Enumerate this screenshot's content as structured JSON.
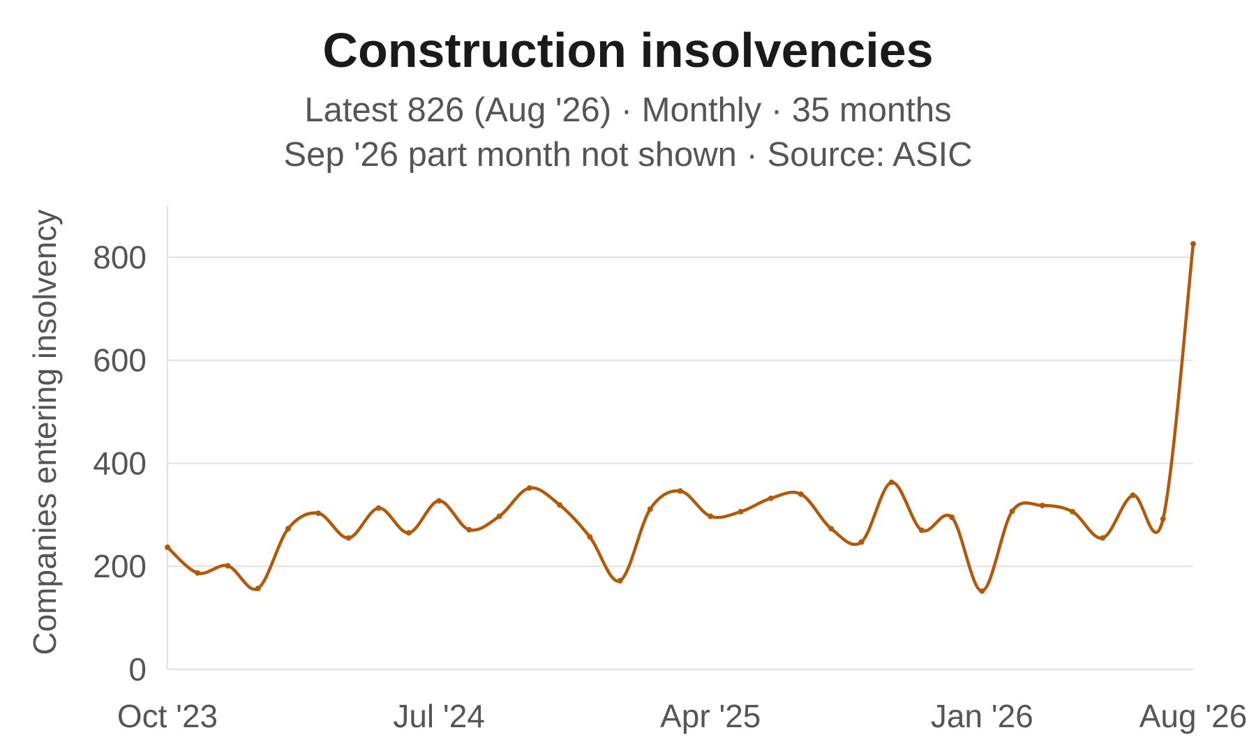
{
  "chart_data": {
    "type": "line",
    "title": "Construction insolvencies",
    "subtitle_lines": [
      "Latest 826 (Aug '26) · Monthly · 35 months",
      "Sep '26 part month not shown · Source: ASIC"
    ],
    "ylabel": "Companies entering insolvency",
    "xlabel": "",
    "ylim": [
      0,
      900
    ],
    "y_ticks": [
      "0",
      "200",
      "400",
      "600",
      "800"
    ],
    "x_ticks": [
      "Oct '23",
      "Jul '24",
      "Apr '25",
      "Jan '26",
      "Aug '26"
    ],
    "x": [
      "Oct '23",
      "Nov '23",
      "Dec '23",
      "Jan '24",
      "Feb '24",
      "Mar '24",
      "Apr '24",
      "May '24",
      "Jun '24",
      "Jul '24",
      "Aug '24",
      "Sep '24",
      "Oct '24",
      "Nov '24",
      "Dec '24",
      "Jan '25",
      "Feb '25",
      "Mar '25",
      "Apr '25",
      "May '25",
      "Jun '25",
      "Jul '25",
      "Aug '25",
      "Sep '25",
      "Oct '25",
      "Nov '25",
      "Dec '25",
      "Jan '26",
      "Feb '26",
      "Mar '26",
      "Apr '26",
      "May '26",
      "Jun '26",
      "Jul '26",
      "Aug '26"
    ],
    "series": [
      {
        "values": [
          237,
          187,
          201,
          157,
          273,
          303,
          255,
          313,
          265,
          327,
          271,
          297,
          352,
          319,
          257,
          172,
          311,
          346,
          297,
          306,
          332,
          340,
          273,
          247,
          363,
          270,
          295,
          152,
          307,
          318,
          306,
          255,
          338,
          292,
          826
        ]
      }
    ],
    "grid": true,
    "legend": "none",
    "colors": {
      "line": "#b35806",
      "grid": "#e0e0e0",
      "text": "#555555",
      "title": "#1a1a1a"
    }
  }
}
